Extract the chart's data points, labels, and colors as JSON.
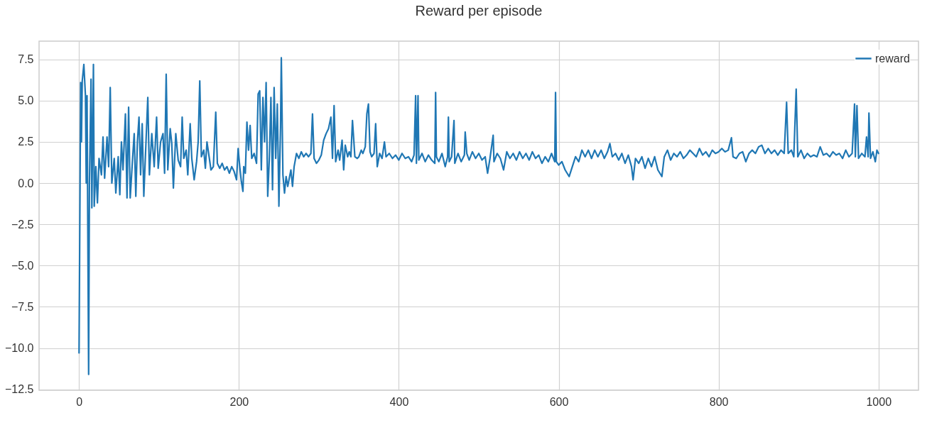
{
  "chart_data": {
    "type": "line",
    "title": "Reward per episode",
    "xlim": [
      -50,
      1050
    ],
    "xticks": [
      0,
      200,
      400,
      600,
      800,
      1000
    ],
    "ylim": [
      -12.56,
      8.61
    ],
    "yticks": [
      {
        "value": -12.5,
        "label": "−12.5"
      },
      {
        "value": -10,
        "label": "−10.0"
      },
      {
        "value": -7.5,
        "label": "−7.5"
      },
      {
        "value": -5,
        "label": "−5.0"
      },
      {
        "value": -2.5,
        "label": "−2.5"
      },
      {
        "value": 0,
        "label": "0.0"
      },
      {
        "value": 2.5,
        "label": "2.5"
      },
      {
        "value": 5,
        "label": "5.0"
      },
      {
        "value": 7.5,
        "label": "7.5"
      }
    ],
    "grid": true,
    "legend": "top right",
    "series": [
      {
        "name": "reward",
        "color": "#1f77b4",
        "x": [
          0,
          2,
          3,
          4,
          6,
          8,
          9,
          10,
          12,
          13,
          15,
          16,
          18,
          19,
          21,
          23,
          25,
          28,
          30,
          32,
          35,
          37,
          39,
          41,
          44,
          46,
          49,
          51,
          53,
          55,
          58,
          60,
          62,
          64,
          67,
          69,
          71,
          73,
          75,
          77,
          79,
          81,
          84,
          86,
          88,
          91,
          94,
          97,
          99,
          102,
          105,
          107,
          109,
          111,
          114,
          116,
          118,
          121,
          124,
          127,
          129,
          131,
          134,
          136,
          139,
          141,
          144,
          147,
          149,
          151,
          153,
          156,
          158,
          160,
          163,
          165,
          168,
          171,
          173,
          176,
          179,
          182,
          185,
          188,
          191,
          194,
          197,
          199,
          201,
          203,
          205,
          206,
          208,
          210,
          212,
          214,
          216,
          219,
          222,
          224,
          226,
          228,
          230,
          232,
          234,
          236,
          238,
          240,
          242,
          244,
          246,
          248,
          250,
          252,
          253,
          255,
          257,
          259,
          261,
          263,
          265,
          267,
          269,
          272,
          275,
          278,
          281,
          284,
          287,
          290,
          292,
          294,
          297,
          300,
          303,
          306,
          309,
          312,
          315,
          317,
          319,
          321,
          324,
          326,
          329,
          331,
          333,
          336,
          338,
          340,
          342,
          345,
          348,
          350,
          353,
          355,
          358,
          360,
          362,
          364,
          366,
          369,
          371,
          373,
          376,
          379,
          382,
          384,
          388,
          392,
          396,
          400,
          404,
          408,
          412,
          416,
          419,
          421,
          422,
          424,
          425,
          429,
          433,
          437,
          441,
          445,
          446,
          447,
          450,
          454,
          458,
          461,
          462,
          463,
          466,
          469,
          470,
          474,
          478,
          482,
          483,
          485,
          488,
          492,
          496,
          500,
          504,
          508,
          511,
          514,
          518,
          519,
          523,
          527,
          531,
          535,
          539,
          543,
          547,
          551,
          555,
          559,
          563,
          567,
          571,
          575,
          579,
          583,
          587,
          591,
          595,
          596,
          597,
          600,
          604,
          608,
          613,
          617,
          621,
          625,
          629,
          633,
          637,
          641,
          645,
          649,
          653,
          657,
          661,
          664,
          667,
          671,
          675,
          679,
          683,
          687,
          691,
          693,
          696,
          700,
          704,
          708,
          712,
          716,
          720,
          724,
          729,
          732,
          736,
          740,
          744,
          748,
          752,
          756,
          760,
          764,
          768,
          772,
          776,
          780,
          784,
          788,
          792,
          796,
          800,
          804,
          808,
          812,
          816,
          818,
          822,
          826,
          830,
          834,
          838,
          842,
          846,
          850,
          854,
          858,
          862,
          866,
          870,
          874,
          878,
          882,
          885,
          887,
          891,
          894,
          897,
          899,
          903,
          907,
          911,
          915,
          919,
          923,
          927,
          931,
          935,
          939,
          943,
          947,
          951,
          955,
          959,
          963,
          967,
          970,
          971,
          973,
          975,
          979,
          983,
          985,
          987,
          988,
          990,
          993,
          996,
          998,
          1000
        ],
        "values": [
          -10.3,
          6.1,
          2.5,
          6.2,
          7.2,
          5.3,
          0,
          5.3,
          -11.6,
          0,
          6.3,
          -1.5,
          7.2,
          -1.4,
          1.0,
          -1.2,
          1.5,
          0.5,
          2.8,
          0.3,
          2.8,
          1.0,
          5.8,
          0,
          1.5,
          -0.6,
          1.6,
          -0.7,
          2.5,
          0.8,
          4.2,
          -0.9,
          4.6,
          -0.9,
          1.5,
          3.0,
          -0.8,
          2.5,
          4.0,
          0.5,
          3.6,
          -0.8,
          2.8,
          5.2,
          0.5,
          3.0,
          1.0,
          4.0,
          0.9,
          2.5,
          3.0,
          0.6,
          6.6,
          0.8,
          3.3,
          2.4,
          -0.3,
          3.0,
          1.4,
          1.0,
          4.0,
          1.5,
          2.0,
          0.5,
          3.6,
          1.5,
          0.2,
          1.3,
          2.5,
          6.2,
          1.6,
          2.0,
          0.9,
          2.5,
          1.5,
          0.8,
          1.0,
          4.3,
          1.2,
          0.9,
          1.2,
          0.8,
          1.0,
          0.6,
          1.0,
          0.7,
          0.2,
          2.1,
          1.0,
          0.1,
          -0.5,
          1.0,
          0.6,
          3.7,
          2.0,
          3.5,
          1.5,
          1.8,
          1.2,
          5.4,
          5.6,
          0.8,
          5.2,
          2.5,
          6.1,
          -0.8,
          1.5,
          5.2,
          -0.4,
          5.8,
          1.5,
          4.8,
          -1.4,
          3.4,
          7.6,
          0.5,
          -0.6,
          0.4,
          -0.2,
          0.3,
          0.8,
          -0.2,
          1.0,
          1.8,
          1.5,
          1.9,
          1.6,
          1.8,
          1.6,
          1.8,
          4.2,
          1.5,
          1.2,
          1.4,
          1.7,
          2.6,
          3.0,
          3.3,
          4.0,
          1.5,
          4.7,
          1.3,
          2.0,
          1.4,
          2.6,
          0.8,
          2.3,
          1.6,
          1.9,
          1.6,
          3.8,
          1.6,
          1.5,
          1.6,
          2.0,
          1.8,
          2.2,
          4.2,
          4.8,
          1.9,
          1.6,
          1.8,
          3.6,
          1.0,
          1.8,
          1.5,
          2.5,
          1.6,
          1.8,
          1.5,
          1.7,
          1.4,
          1.8,
          1.5,
          1.6,
          1.3,
          1.7,
          5.3,
          1.2,
          5.3,
          1.4,
          1.8,
          1.3,
          1.7,
          1.4,
          1.2,
          5.5,
          1.6,
          1.3,
          1.8,
          1.0,
          1.6,
          4.0,
          1.3,
          1.6,
          3.8,
          1.2,
          1.8,
          1.3,
          1.7,
          3.1,
          1.8,
          1.4,
          1.9,
          1.5,
          1.8,
          1.4,
          1.6,
          0.6,
          1.5,
          2.9,
          1.3,
          1.8,
          1.5,
          0.8,
          1.9,
          1.5,
          1.8,
          1.4,
          1.9,
          1.5,
          1.8,
          1.4,
          1.9,
          1.5,
          1.7,
          1.2,
          1.6,
          1.3,
          1.8,
          1.3,
          5.5,
          1.3,
          1.1,
          1.3,
          0.8,
          0.4,
          1.0,
          1.6,
          1.3,
          2.0,
          1.6,
          2.0,
          1.5,
          2.0,
          1.6,
          2.0,
          1.5,
          1.9,
          2.4,
          1.6,
          1.8,
          1.4,
          1.8,
          1.2,
          1.7,
          1.0,
          0.2,
          1.5,
          1.2,
          1.6,
          0.9,
          1.5,
          1.0,
          1.6,
          0.8,
          0.4,
          1.6,
          2.0,
          1.4,
          1.8,
          1.6,
          1.9,
          1.5,
          1.7,
          2.0,
          1.8,
          1.6,
          2.1,
          1.7,
          1.9,
          1.6,
          2.0,
          1.8,
          1.9,
          2.1,
          1.9,
          2.0,
          2.75,
          1.6,
          1.5,
          1.8,
          1.9,
          1.3,
          1.8,
          2.0,
          1.8,
          2.2,
          2.3,
          1.8,
          2.1,
          1.8,
          2.0,
          1.7,
          2.0,
          1.8,
          4.9,
          1.8,
          2.0,
          1.6,
          5.7,
          1.6,
          2.0,
          1.5,
          1.8,
          1.6,
          1.7,
          1.6,
          2.2,
          1.7,
          1.8,
          1.6,
          1.9,
          1.7,
          1.8,
          1.5,
          2.0,
          1.6,
          1.8,
          4.8,
          1.6,
          4.7,
          1.5,
          1.8,
          1.6,
          2.8,
          1.6,
          4.25,
          1.5,
          1.9,
          1.3,
          2.0,
          1.8
        ]
      }
    ]
  }
}
